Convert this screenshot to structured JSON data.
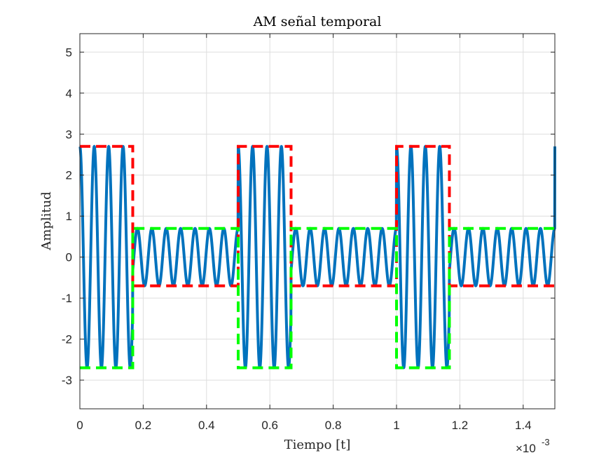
{
  "chart_data": {
    "type": "line",
    "title": "AM señal temporal",
    "xlabel": "Tiempo [t]",
    "ylabel": "Amplitud",
    "x_exponent_base": "×10",
    "x_exponent_power": "-3",
    "xlim": [
      0,
      1.5
    ],
    "ylim": [
      -3.7,
      5.45
    ],
    "x_scale_factor": 0.001,
    "xticks": [
      0,
      0.2,
      0.4,
      0.6,
      0.8,
      1,
      1.2,
      1.4
    ],
    "xtick_labels": [
      "0",
      "0.2",
      "0.4",
      "0.6",
      "0.8",
      "1",
      "1.2",
      "1.4"
    ],
    "yticks": [
      -3,
      -2,
      -1,
      0,
      1,
      2,
      3,
      4,
      5
    ],
    "ytick_labels": [
      "-3",
      "-2",
      "-1",
      "0",
      "1",
      "2",
      "3",
      "4",
      "5"
    ],
    "grid": true,
    "legend": "none",
    "series": [
      {
        "color": "#0072BD",
        "style": "solid",
        "carrier_frequency": 22000,
        "high_amplitude": 2.7,
        "low_amplitude": 0.7,
        "period": 0.5,
        "high_duration": 0.167
      },
      {
        "color": "#FF0000",
        "style": "dashed",
        "x": [
          0,
          0.167,
          0.167,
          0.5,
          0.5,
          0.667,
          0.667,
          1.0,
          1.0,
          1.167,
          1.167,
          1.5
        ],
        "y": [
          2.7,
          2.7,
          -0.7,
          -0.7,
          2.7,
          2.7,
          -0.7,
          -0.7,
          2.7,
          2.7,
          -0.7,
          -0.7
        ]
      },
      {
        "color": "#00FF00",
        "style": "dashed",
        "x": [
          0,
          0.167,
          0.167,
          0.5,
          0.5,
          0.667,
          0.667,
          1.0,
          1.0,
          1.167,
          1.167,
          1.5
        ],
        "y": [
          -2.7,
          -2.7,
          0.7,
          0.7,
          -2.7,
          -2.7,
          0.7,
          0.7,
          -2.7,
          -2.7,
          0.7,
          0.7
        ]
      }
    ]
  }
}
